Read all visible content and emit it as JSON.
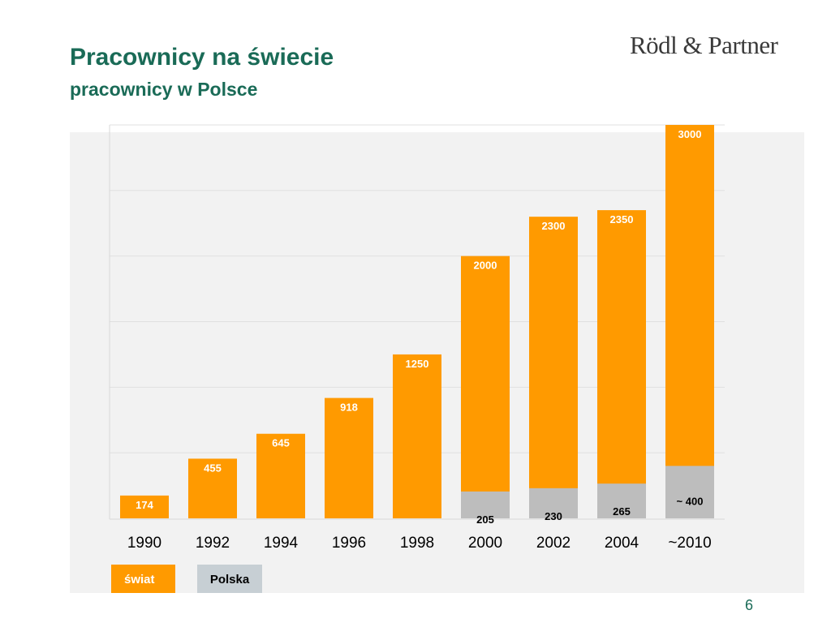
{
  "header": {
    "title": "Pracownicy na świecie",
    "subtitle": "pracownicy w Polsce",
    "logo_text": "Rödl & Partner"
  },
  "legend": {
    "world": "świat",
    "poland": "Polska"
  },
  "page_number": "6",
  "colors": {
    "world": "#ff9a00",
    "poland": "#bdbdbd",
    "title": "#1a6b57",
    "panel": "#f2f2f2"
  },
  "chart_data": {
    "type": "bar",
    "stacked": false,
    "categories": [
      "1990",
      "1992",
      "1994",
      "1996",
      "1998",
      "2000",
      "2002",
      "2004",
      "~2010"
    ],
    "ylim": [
      0,
      3000
    ],
    "grid": true,
    "series": [
      {
        "name": "świat",
        "values": [
          174,
          455,
          645,
          918,
          1250,
          2000,
          2300,
          2350,
          3000
        ],
        "labels": [
          "174",
          "455",
          "645",
          "918",
          "1250",
          "2000",
          "2300",
          "2350",
          "3000"
        ]
      },
      {
        "name": "Polska",
        "values": [
          null,
          null,
          null,
          null,
          null,
          205,
          230,
          265,
          400
        ],
        "labels": [
          "",
          "",
          "",
          "",
          "",
          "205",
          "230",
          "265",
          "~ 400"
        ]
      }
    ]
  }
}
